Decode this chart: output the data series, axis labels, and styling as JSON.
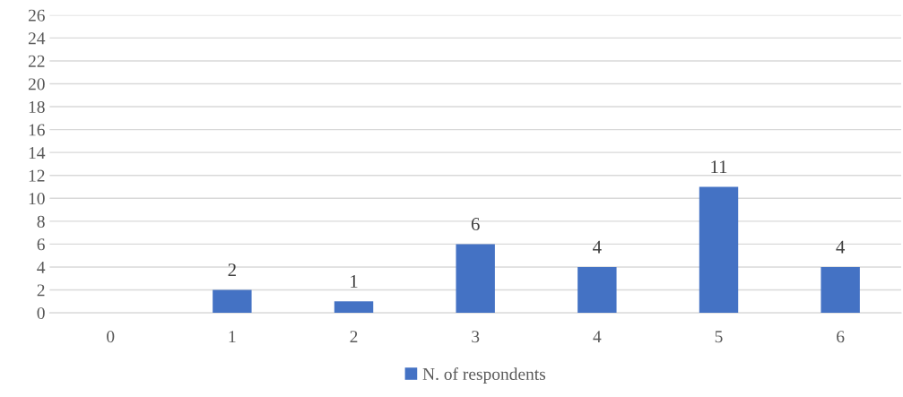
{
  "chart_data": {
    "type": "bar",
    "categories": [
      "0",
      "1",
      "2",
      "3",
      "4",
      "5",
      "6"
    ],
    "series": [
      {
        "name": "N. of respondents",
        "color": "#4472c4",
        "values": [
          0,
          2,
          1,
          6,
          4,
          11,
          4
        ],
        "value_labels": [
          null,
          "2",
          "1",
          "6",
          "4",
          "11",
          "4"
        ]
      }
    ],
    "ylim": [
      0,
      26
    ],
    "yticks": [
      0,
      2,
      4,
      6,
      8,
      10,
      12,
      14,
      16,
      18,
      20,
      22,
      24,
      26
    ],
    "grid": "y",
    "legend": "bottom"
  }
}
